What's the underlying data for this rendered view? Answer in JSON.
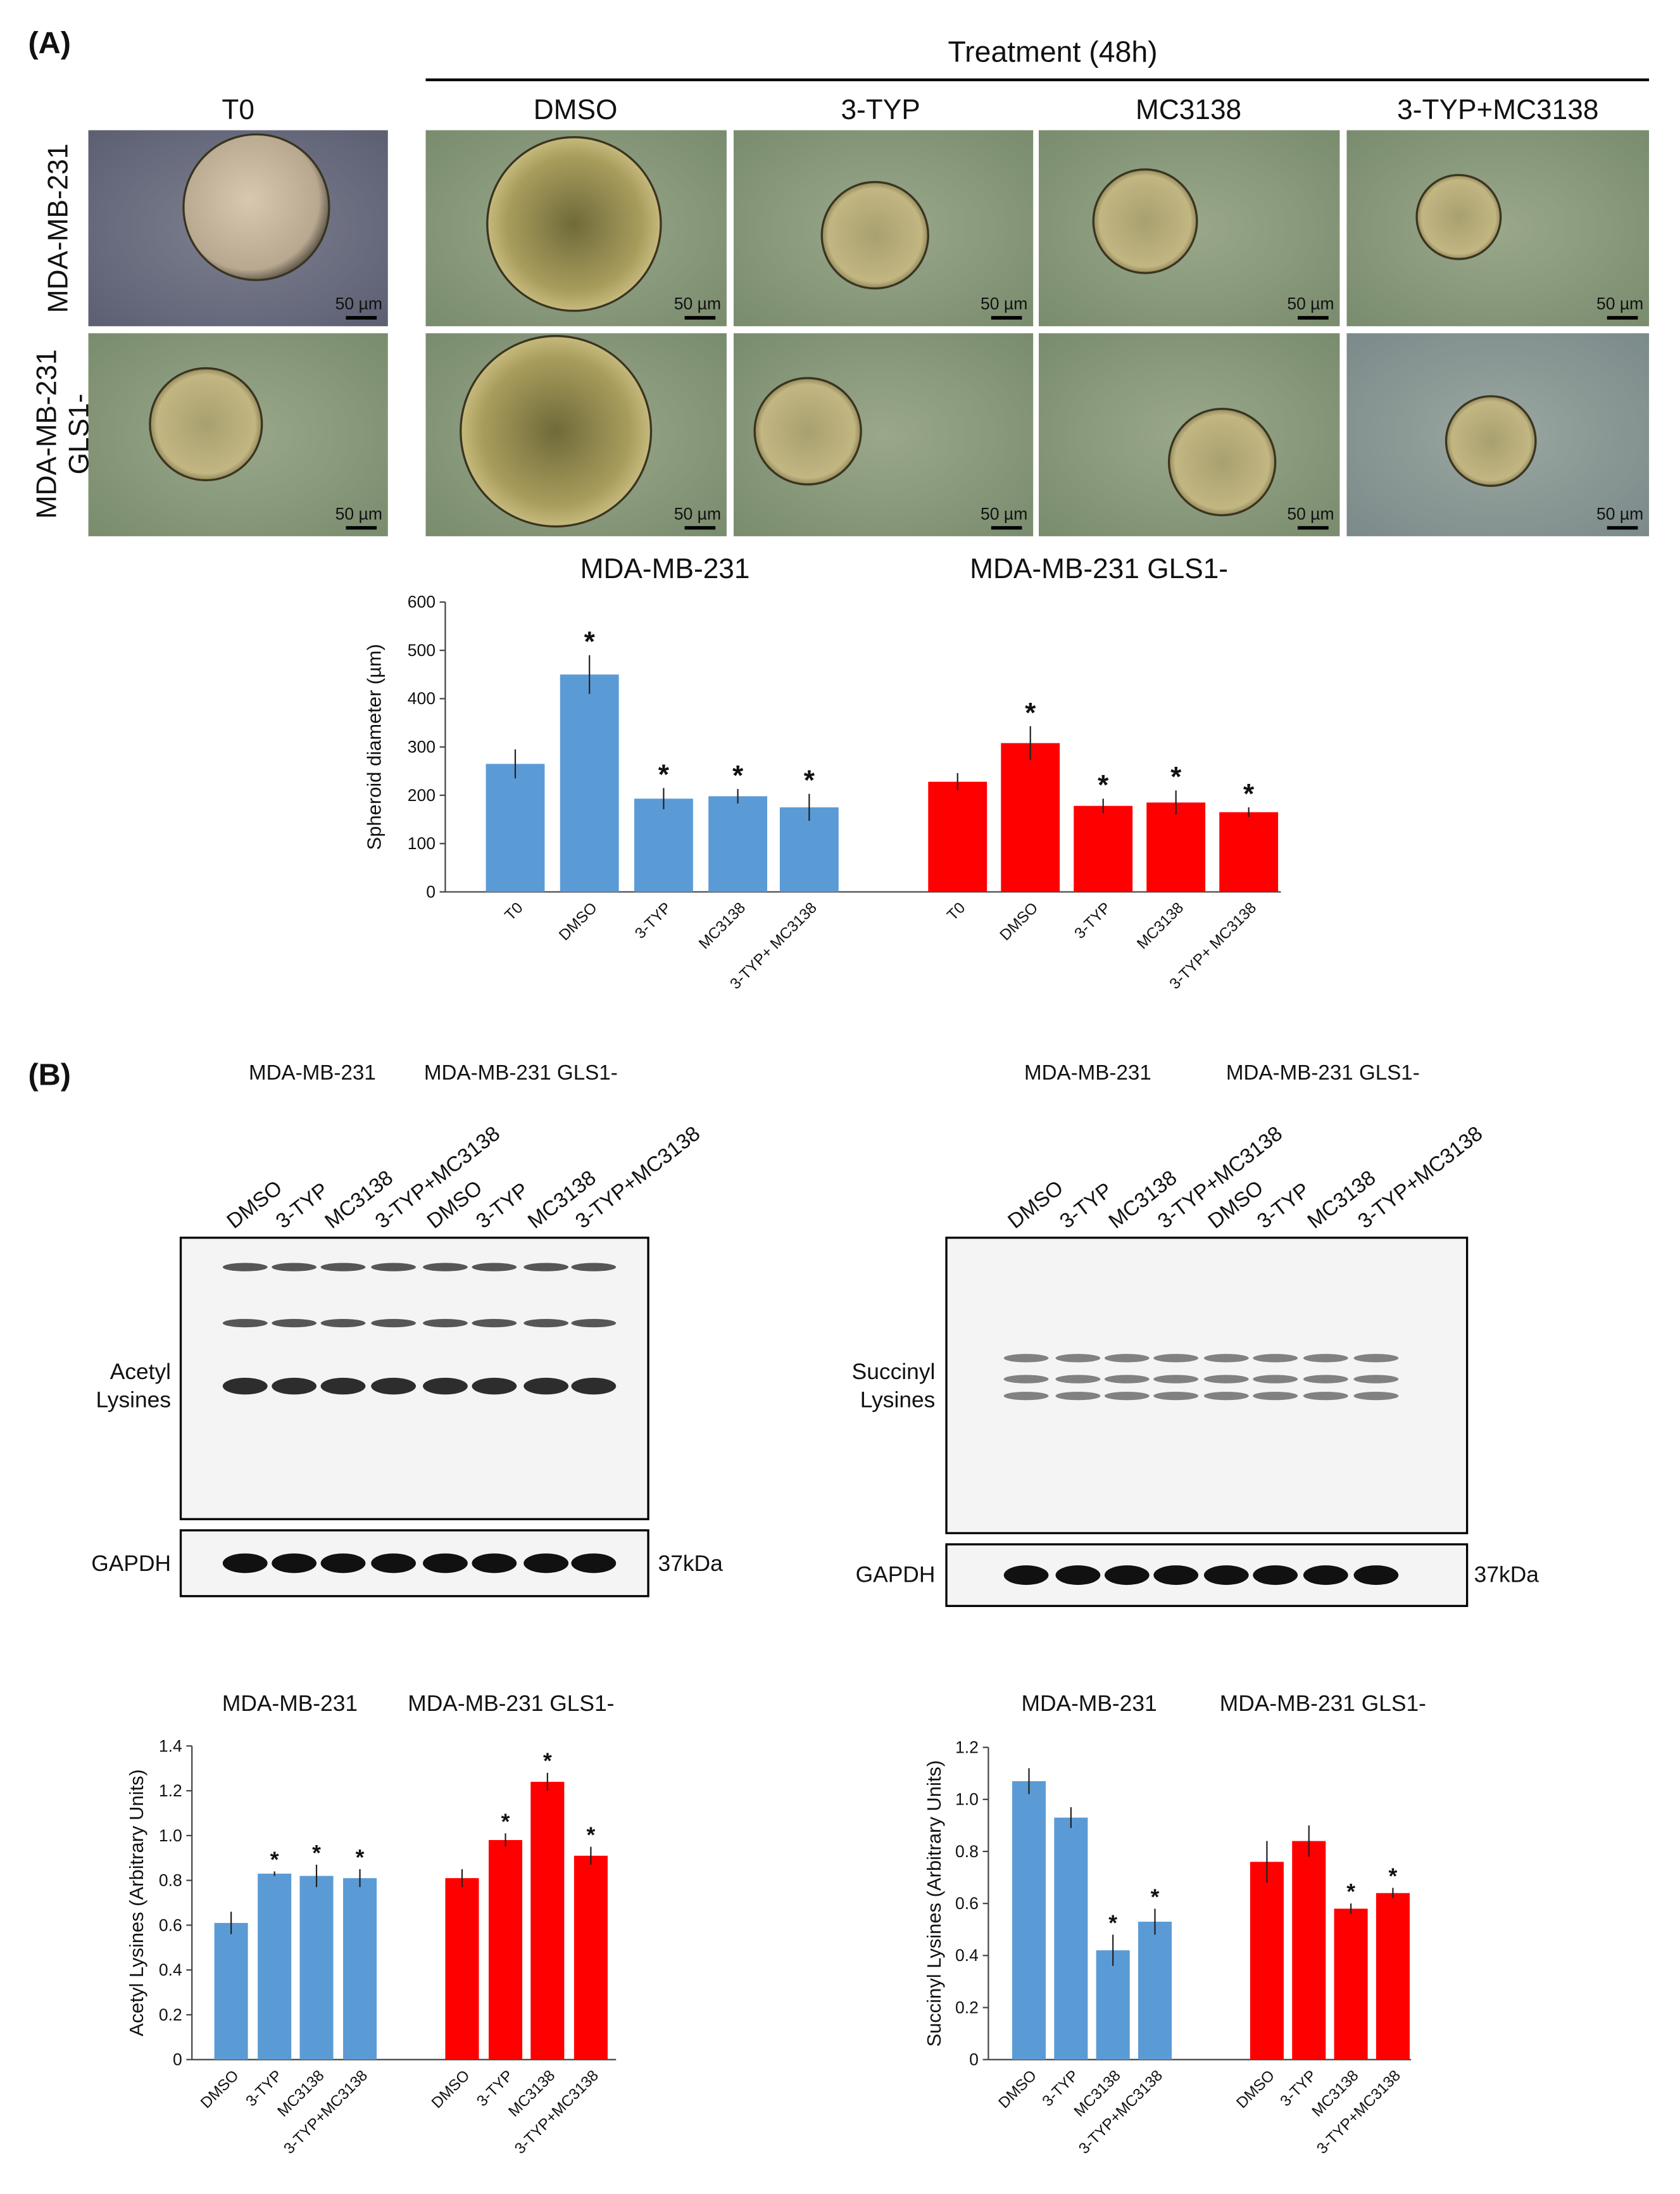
{
  "panel_a": {
    "label": "(A)",
    "treatment_label": "Treatment (48h)",
    "columns": [
      "T0",
      "DMSO",
      "3-TYP",
      "MC3138",
      "3-TYP+MC3138"
    ],
    "rows": [
      [
        "MDA-MB-231"
      ],
      [
        "MDA-MB-231",
        "GLS1-"
      ]
    ],
    "scale_bar": "50 µm"
  },
  "panel_b": {
    "label": "(B)",
    "blots": [
      {
        "groups": [
          "MDA-MB-231",
          "MDA-MB-231 GLS1-"
        ],
        "lanes": [
          "DMSO",
          "3-TYP",
          "MC3138",
          "3-TYP+MC3138",
          "DMSO",
          "3-TYP",
          "MC3138",
          "3-TYP+MC3138"
        ],
        "target": [
          "Acetyl",
          "Lysines"
        ],
        "loading_control": "GAPDH",
        "marker": "37kDa"
      },
      {
        "groups": [
          "MDA-MB-231",
          "MDA-MB-231 GLS1-"
        ],
        "lanes": [
          "DMSO",
          "3-TYP",
          "MC3138",
          "3-TYP+MC3138",
          "DMSO",
          "3-TYP",
          "MC3138",
          "3-TYP+MC3138"
        ],
        "target": [
          "Succinyl",
          "Lysines"
        ],
        "loading_control": "GAPDH",
        "marker": "37kDa"
      }
    ]
  },
  "chart_data": [
    {
      "type": "bar",
      "y_label": "Spheroid diameter (µm)",
      "categories": [
        "T0",
        "DMSO",
        "3-TYP",
        "MC3138",
        "3-TYP+ MC3138"
      ],
      "ylim": [
        0,
        600
      ],
      "yticks": [
        0,
        100,
        200,
        300,
        400,
        500,
        600
      ],
      "series": [
        {
          "name": "MDA-MB-231",
          "color": "#5b9bd5",
          "values": [
            265,
            450,
            193,
            198,
            175
          ],
          "errors": [
            30,
            40,
            22,
            15,
            28
          ],
          "asterisks": [
            null,
            "*",
            "*",
            "*",
            "*"
          ]
        },
        {
          "name": "MDA-MB-231 GLS1-",
          "color": "#ff0000",
          "values": [
            228,
            308,
            178,
            185,
            165
          ],
          "errors": [
            18,
            35,
            15,
            25,
            10
          ],
          "asterisks": [
            null,
            "*",
            "*",
            "*",
            "*"
          ]
        }
      ]
    },
    {
      "type": "bar",
      "y_label": "Acetyl Lysines (Arbitrary Units)",
      "categories": [
        "DMSO",
        "3-TYP",
        "MC3138",
        "3-TYP+MC3138"
      ],
      "ylim": [
        0,
        1.4
      ],
      "yticks": [
        0,
        0.2,
        0.4,
        0.6,
        0.8,
        {
          "value": 1,
          "label": "1.0"
        },
        1.2,
        1.4
      ],
      "series": [
        {
          "name": "MDA-MB-231",
          "color": "#5b9bd5",
          "values": [
            0.61,
            0.83,
            0.82,
            0.81
          ],
          "errors": [
            0.05,
            0.01,
            0.05,
            0.04
          ],
          "asterisks": [
            null,
            "*",
            "*",
            "*"
          ]
        },
        {
          "name": "MDA-MB-231 GLS1-",
          "color": "#ff0000",
          "values": [
            0.81,
            0.98,
            1.24,
            0.91
          ],
          "errors": [
            0.04,
            0.03,
            0.04,
            0.04
          ],
          "asterisks": [
            null,
            "*",
            "*",
            "*"
          ]
        }
      ]
    },
    {
      "type": "bar",
      "y_label": "Succinyl Lysines (Arbitrary Units)",
      "categories": [
        "DMSO",
        "3-TYP",
        "MC3138",
        "3-TYP+MC3138"
      ],
      "ylim": [
        0,
        1.2
      ],
      "yticks": [
        0,
        0.2,
        0.4,
        0.6,
        0.8,
        {
          "value": 1,
          "label": "1.0"
        },
        1.2
      ],
      "series": [
        {
          "name": "MDA-MB-231",
          "color": "#5b9bd5",
          "values": [
            1.07,
            0.93,
            0.42,
            0.53
          ],
          "errors": [
            0.05,
            0.04,
            0.06,
            0.05
          ],
          "asterisks": [
            null,
            null,
            "*",
            "*"
          ]
        },
        {
          "name": "MDA-MB-231 GLS1-",
          "color": "#ff0000",
          "values": [
            0.76,
            0.84,
            0.58,
            0.64
          ],
          "errors": [
            0.08,
            0.06,
            0.02,
            0.02
          ],
          "asterisks": [
            null,
            null,
            "*",
            "*"
          ]
        }
      ]
    }
  ]
}
